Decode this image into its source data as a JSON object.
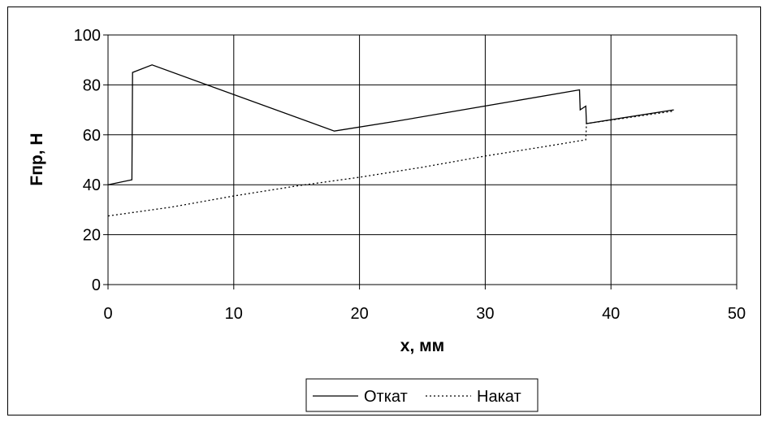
{
  "chart_data": {
    "type": "line",
    "xlabel": "x, мм",
    "ylabel": "Fпр, Н",
    "xlim": [
      0,
      50
    ],
    "ylim": [
      0,
      100
    ],
    "xticks": [
      0,
      10,
      20,
      30,
      40,
      50
    ],
    "yticks": [
      0,
      20,
      40,
      60,
      80,
      100
    ],
    "grid": true,
    "legend_position": "bottom-center",
    "series": [
      {
        "name": "Откат",
        "line_style": "solid",
        "color": "#000000",
        "x": [
          0,
          1.9,
          1.95,
          3.5,
          18,
          23,
          37.5,
          37.55,
          38,
          38.05,
          45
        ],
        "y": [
          40,
          42,
          85,
          88,
          61.5,
          65.5,
          78,
          70,
          71.5,
          64.5,
          70
        ]
      },
      {
        "name": "Накат",
        "line_style": "dotted",
        "color": "#000000",
        "x": [
          0,
          5,
          10,
          15,
          20,
          25,
          30,
          35,
          38,
          38.05,
          45
        ],
        "y": [
          27.5,
          31,
          35.5,
          39.5,
          43,
          47,
          51.5,
          55.5,
          58,
          64.5,
          69.5
        ]
      }
    ]
  }
}
